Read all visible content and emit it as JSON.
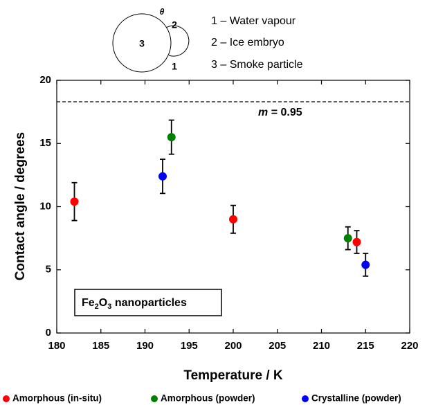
{
  "chart_data": {
    "type": "scatter",
    "x_label": "Temperature / K",
    "y_label": "Contact angle  / degrees",
    "xlim": [
      180,
      220
    ],
    "xticks": [
      180,
      185,
      190,
      195,
      200,
      205,
      210,
      215,
      220
    ],
    "ylim": [
      0,
      20
    ],
    "yticks": [
      0,
      5,
      10,
      15,
      20
    ],
    "reference_line": 18.3,
    "annotation": {
      "symbol": "m",
      "text": "= 0.95"
    },
    "inset_label": [
      "Fe",
      "2",
      "O",
      "3",
      " nanoparticles"
    ],
    "schematic": {
      "labels": [
        "3",
        "2",
        "1",
        "θ"
      ],
      "key": [
        "1 – Water vapour",
        "2 – Ice embryo",
        "3 – Smoke particle"
      ]
    },
    "series": [
      {
        "name": "Amorphous (in-situ)",
        "color": "#ff0000",
        "x": [
          182,
          200,
          214
        ],
        "values": [
          10.4,
          9.0,
          7.2
        ],
        "errors": [
          1.5,
          1.1,
          0.9
        ]
      },
      {
        "name": "Amorphous (powder)",
        "color": "#008000",
        "x": [
          193,
          213
        ],
        "values": [
          15.5,
          7.5
        ],
        "errors": [
          1.35,
          0.9
        ]
      },
      {
        "name": "Crystalline (powder)",
        "color": "#0000ff",
        "x": [
          192,
          215
        ],
        "values": [
          12.4,
          5.4
        ],
        "errors": [
          1.35,
          0.9
        ]
      }
    ]
  }
}
